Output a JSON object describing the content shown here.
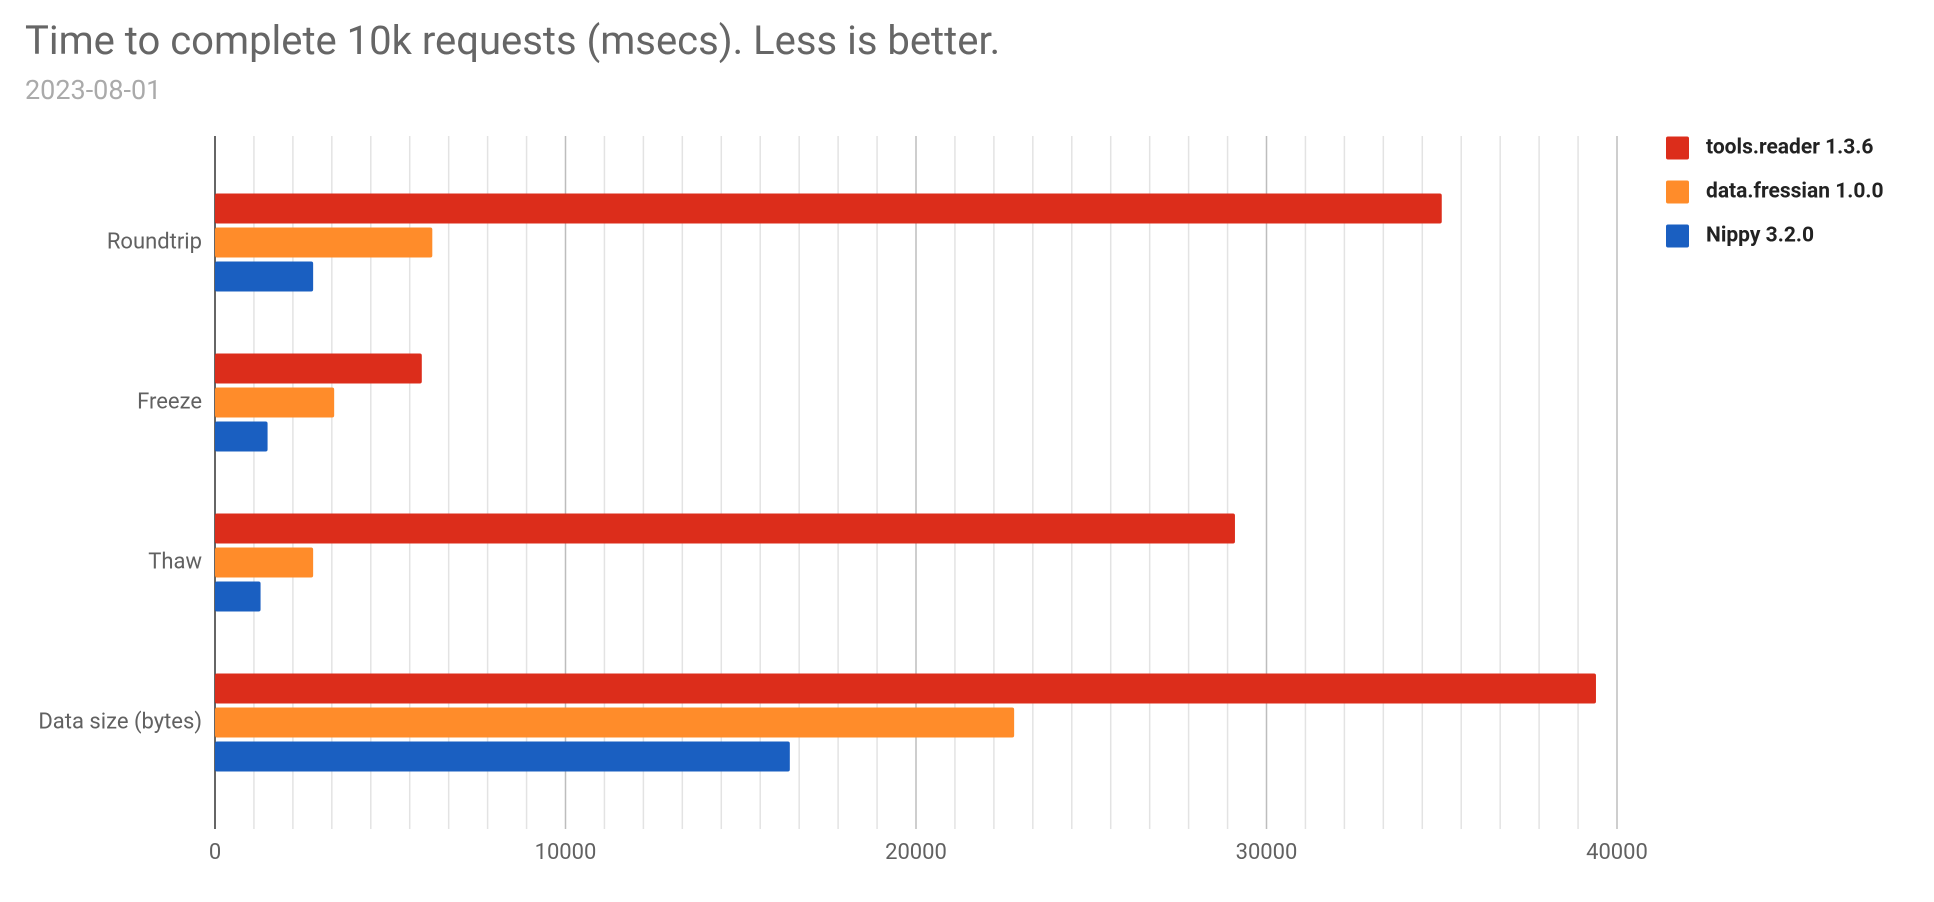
{
  "chart_data": {
    "type": "bar",
    "orientation": "horizontal",
    "title": "Time to complete 10k requests (msecs). Less is better.",
    "subtitle": "2023-08-01",
    "categories": [
      "Roundtrip",
      "Freeze",
      "Thaw",
      "Data size (bytes)"
    ],
    "series": [
      {
        "name": "tools.reader 1.3.6",
        "color": "#dc2d1b",
        "values": [
          35000,
          5900,
          29100,
          39400
        ]
      },
      {
        "name": "data.fressian 1.0.0",
        "color": "#ff8c2a",
        "values": [
          6200,
          3400,
          2800,
          22800
        ]
      },
      {
        "name": "Nippy 3.2.0",
        "color": "#1a5fc1",
        "values": [
          2800,
          1500,
          1300,
          16400
        ]
      }
    ],
    "xlim": [
      0,
      40000
    ],
    "xticks": [
      0,
      10000,
      20000,
      30000,
      40000
    ],
    "grid": true,
    "minor_grid_count": 8,
    "legend": "right"
  }
}
